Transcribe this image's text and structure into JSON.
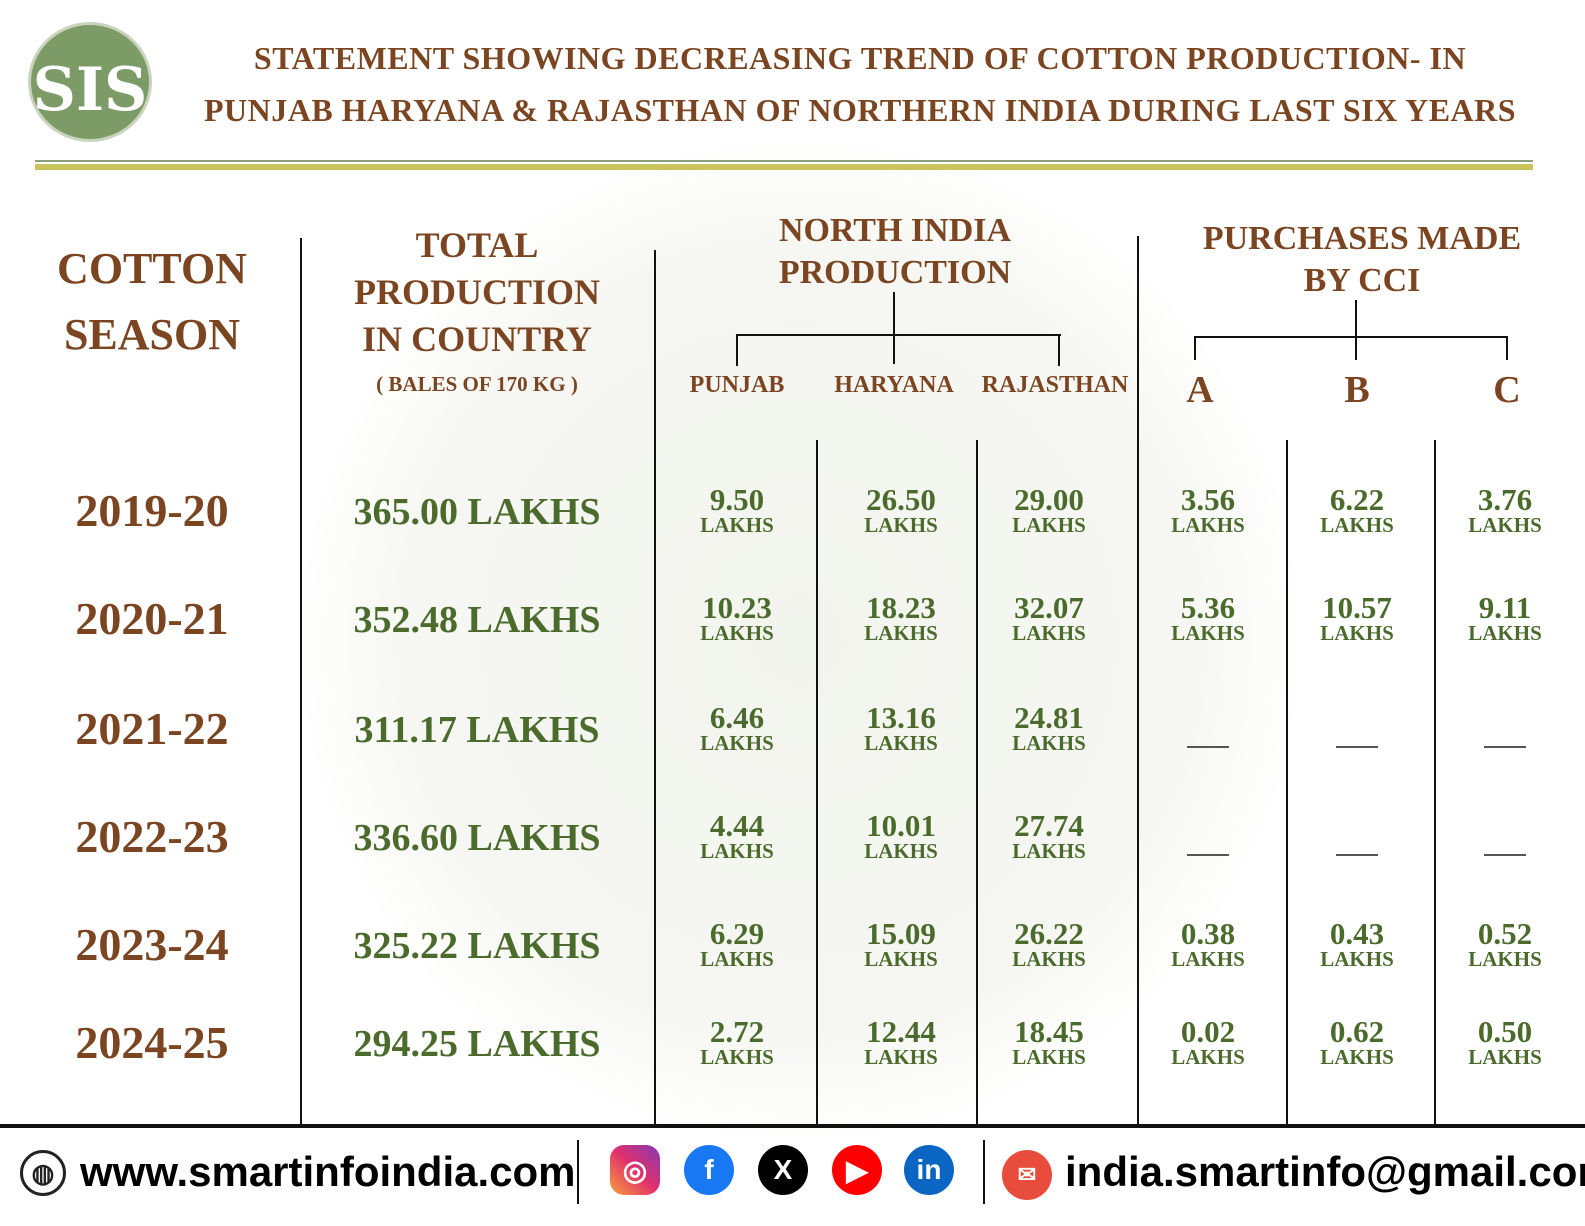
{
  "header": {
    "logo_text": "SIS",
    "title_line1": "STATEMENT SHOWING DECREASING TREND OF   COTTON PRODUCTION- IN",
    "title_line2": "PUNJAB HARYANA & RAJASTHAN OF NORTHERN INDIA DURING LAST SIX YEARS"
  },
  "columns": {
    "season": [
      "COTTON",
      "SEASON"
    ],
    "total": [
      "TOTAL",
      "PRODUCTION",
      "IN COUNTRY"
    ],
    "total_note": "( BALES OF 170 KG )",
    "north": [
      "NORTH INDIA",
      "PRODUCTION"
    ],
    "north_sub": [
      "PUNJAB",
      "HARYANA",
      "RAJASTHAN"
    ],
    "cci": [
      "PURCHASES MADE",
      "BY CCI"
    ],
    "cci_sub": [
      "A",
      "B",
      "C"
    ]
  },
  "unit": "LAKHS",
  "rows": [
    {
      "season": "2019-20",
      "total": "365.00 LAKHS",
      "values": [
        "9.50",
        "26.50",
        "29.00",
        "3.56",
        "6.22",
        "3.76"
      ]
    },
    {
      "season": "2020-21",
      "total": "352.48 LAKHS",
      "values": [
        "10.23",
        "18.23",
        "32.07",
        "5.36",
        "10.57",
        "9.11"
      ]
    },
    {
      "season": "2021-22",
      "total": "311.17 LAKHS",
      "values": [
        "6.46",
        "13.16",
        "24.81",
        null,
        null,
        null
      ]
    },
    {
      "season": "2022-23",
      "total": "336.60 LAKHS",
      "values": [
        "4.44",
        "10.01",
        "27.74",
        null,
        null,
        null
      ]
    },
    {
      "season": "2023-24",
      "total": "325.22 LAKHS",
      "values": [
        "6.29",
        "15.09",
        "26.22",
        "0.38",
        "0.43",
        "0.52"
      ]
    },
    {
      "season": "2024-25",
      "total": "294.25 LAKHS",
      "values": [
        "2.72",
        "12.44",
        "18.45",
        "0.02",
        "0.62",
        "0.50"
      ]
    }
  ],
  "footer": {
    "website": "www.smartinfoindia.com",
    "email": "india.smartinfo@gmail.com",
    "social_icons": [
      "instagram-icon",
      "facebook-icon",
      "x-icon",
      "youtube-icon",
      "linkedin-icon"
    ]
  }
}
